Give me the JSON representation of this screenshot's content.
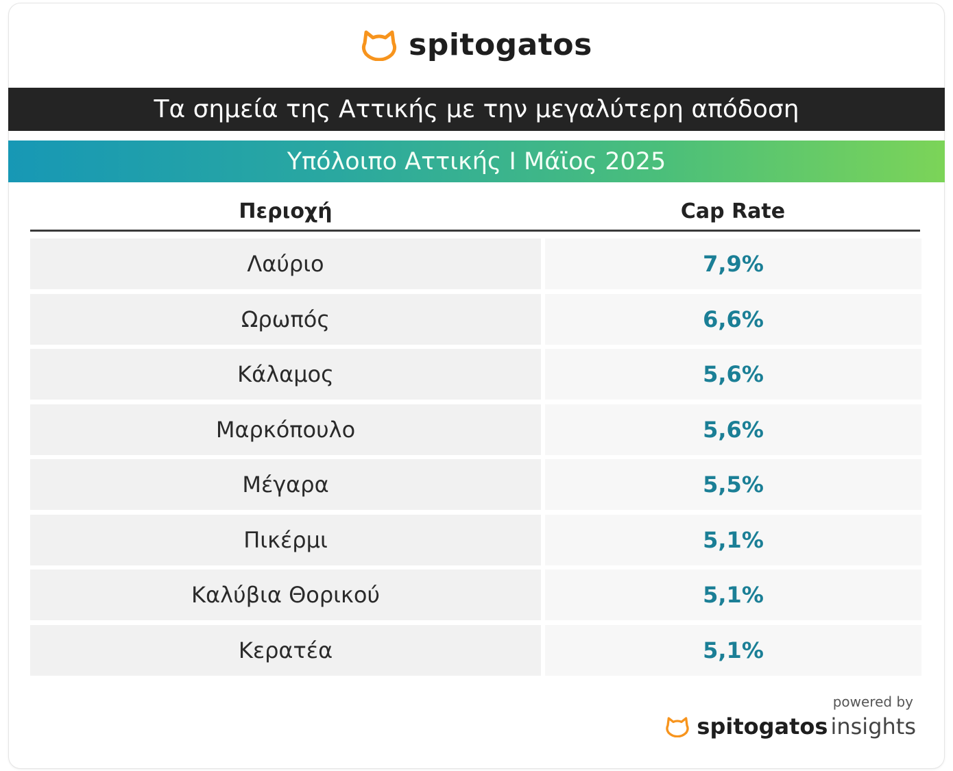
{
  "brand": {
    "logo_text": "spitogatos",
    "icon": "cat-head-icon",
    "accent_color": "#f7941d"
  },
  "header": {
    "title": "Τα σημεία της Αττικής με την μεγαλύτερη απόδοση",
    "subtitle": "Υπόλοιπο Αττικής I Μάϊος 2025"
  },
  "table": {
    "columns": [
      "Περιοχή",
      "Cap Rate"
    ],
    "rows": [
      {
        "area": "Λαύριο",
        "cap_rate": "7,9%"
      },
      {
        "area": "Ωρωπός",
        "cap_rate": "6,6%"
      },
      {
        "area": "Κάλαμος",
        "cap_rate": "5,6%"
      },
      {
        "area": "Μαρκόπουλο",
        "cap_rate": "5,6%"
      },
      {
        "area": "Μέγαρα",
        "cap_rate": "5,5%"
      },
      {
        "area": "Πικέρμι",
        "cap_rate": "5,1%"
      },
      {
        "area": "Καλύβια Θορικού",
        "cap_rate": "5,1%"
      },
      {
        "area": "Κερατέα",
        "cap_rate": "5,1%"
      }
    ]
  },
  "footer": {
    "powered_by": "powered by",
    "brand_bold": "spitogatos",
    "brand_light": "insights"
  }
}
